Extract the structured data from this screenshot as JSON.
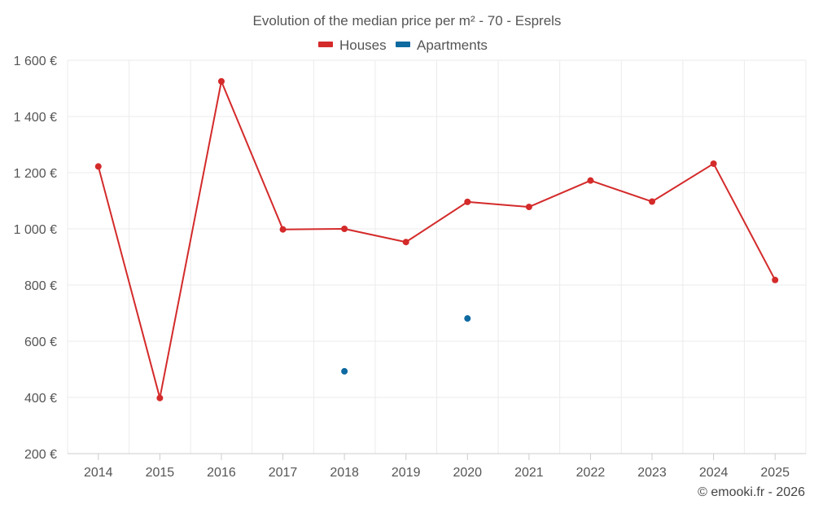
{
  "chart_data": {
    "type": "line",
    "title": "Evolution of the median price per m² - 70 - Esprels",
    "xlabel": "",
    "ylabel": "",
    "ylim": [
      200,
      1600
    ],
    "y_ticks": [
      200,
      400,
      600,
      800,
      1000,
      1200,
      1400,
      1600
    ],
    "y_tick_labels": [
      "200 €",
      "400 €",
      "600 €",
      "800 €",
      "1 000 €",
      "1 200 €",
      "1 400 €",
      "1 600 €"
    ],
    "categories": [
      "2014",
      "2015",
      "2016",
      "2017",
      "2018",
      "2019",
      "2020",
      "2021",
      "2022",
      "2023",
      "2024",
      "2025"
    ],
    "grid": true,
    "legend_position": "top-center",
    "series": [
      {
        "name": "Houses",
        "color": "#d42a2a",
        "values": [
          1222,
          398,
          1525,
          998,
          1000,
          953,
          1096,
          1078,
          1172,
          1097,
          1232,
          818
        ]
      },
      {
        "name": "Apartments",
        "color": "#0e6aa0",
        "values": [
          null,
          null,
          null,
          null,
          493,
          null,
          681,
          null,
          null,
          null,
          null,
          null
        ]
      }
    ],
    "credit": "© emooki.fr - 2026"
  }
}
